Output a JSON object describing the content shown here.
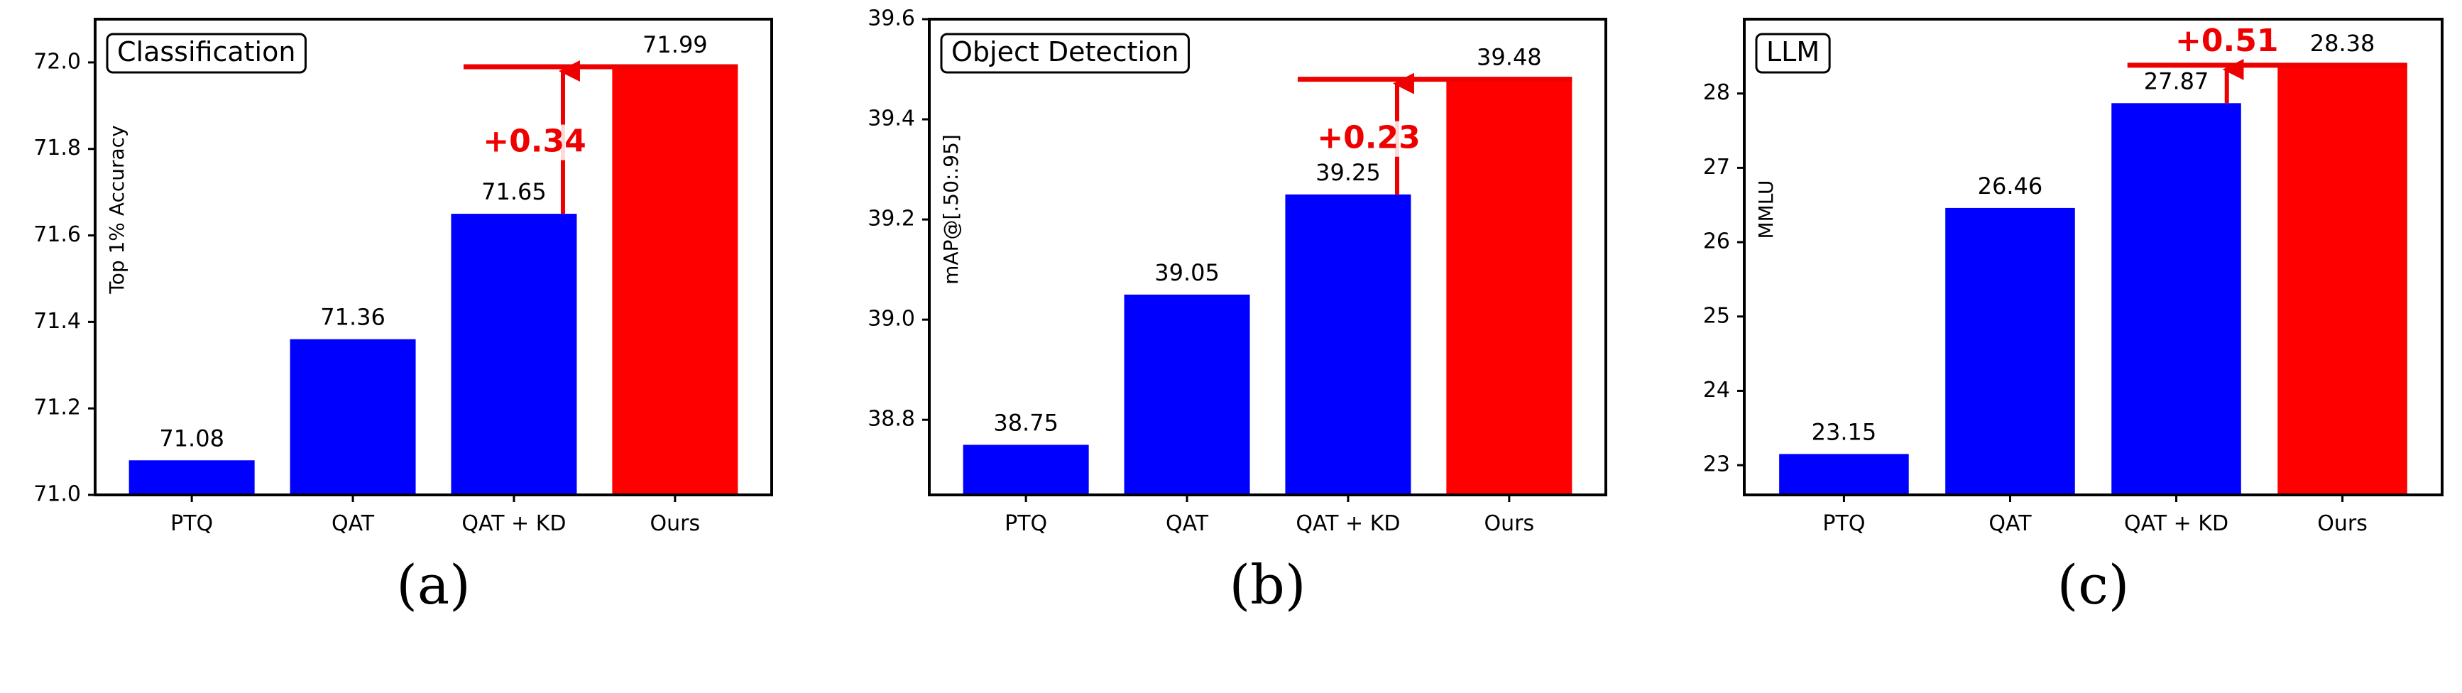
{
  "colors": {
    "baseline": "#0000ff",
    "ours": "#ff0000",
    "gain": "#ee0000"
  },
  "chart_data": [
    {
      "type": "bar",
      "title": "Classification",
      "ylabel": "Top 1% Accuracy",
      "caption": "(a)",
      "categories": [
        "PTQ",
        "QAT",
        "QAT + KD",
        "Ours"
      ],
      "values": [
        71.08,
        71.36,
        71.65,
        71.99
      ],
      "value_labels": [
        "71.08",
        "71.36",
        "71.65",
        "71.99"
      ],
      "ylim": [
        71.0,
        72.1
      ],
      "yticks": [
        71.0,
        71.2,
        71.4,
        71.6,
        71.8,
        72.0
      ],
      "ytick_labels": [
        "71.0",
        "71.2",
        "71.4",
        "71.6",
        "71.8",
        "72.0"
      ],
      "highlight_index": 3,
      "gain": {
        "label": "+0.34",
        "from_index": 2,
        "to_index": 3,
        "text_position": "middle"
      }
    },
    {
      "type": "bar",
      "title": "Object Detection",
      "ylabel": "mAP@[.50:.95]",
      "caption": "(b)",
      "categories": [
        "PTQ",
        "QAT",
        "QAT + KD",
        "Ours"
      ],
      "values": [
        38.75,
        39.05,
        39.25,
        39.48
      ],
      "value_labels": [
        "38.75",
        "39.05",
        "39.25",
        "39.48"
      ],
      "ylim": [
        38.65,
        39.6
      ],
      "yticks": [
        38.8,
        39.0,
        39.2,
        39.4,
        39.6
      ],
      "ytick_labels": [
        "38.8",
        "39.0",
        "39.2",
        "39.4",
        "39.6"
      ],
      "highlight_index": 3,
      "gain": {
        "label": "+0.23",
        "from_index": 2,
        "to_index": 3,
        "text_position": "middle"
      }
    },
    {
      "type": "bar",
      "title": "LLM",
      "ylabel": "MMLU",
      "caption": "(c)",
      "categories": [
        "PTQ",
        "QAT",
        "QAT + KD",
        "Ours"
      ],
      "values": [
        23.15,
        26.46,
        27.87,
        28.38
      ],
      "value_labels": [
        "23.15",
        "26.46",
        "27.87",
        "28.38"
      ],
      "ylim": [
        22.6,
        29.0
      ],
      "yticks": [
        23,
        24,
        25,
        26,
        27,
        28
      ],
      "ytick_labels": [
        "23",
        "24",
        "25",
        "26",
        "27",
        "28"
      ],
      "highlight_index": 3,
      "gain": {
        "label": "+0.51",
        "from_index": 2,
        "to_index": 3,
        "text_position": "top"
      }
    }
  ]
}
